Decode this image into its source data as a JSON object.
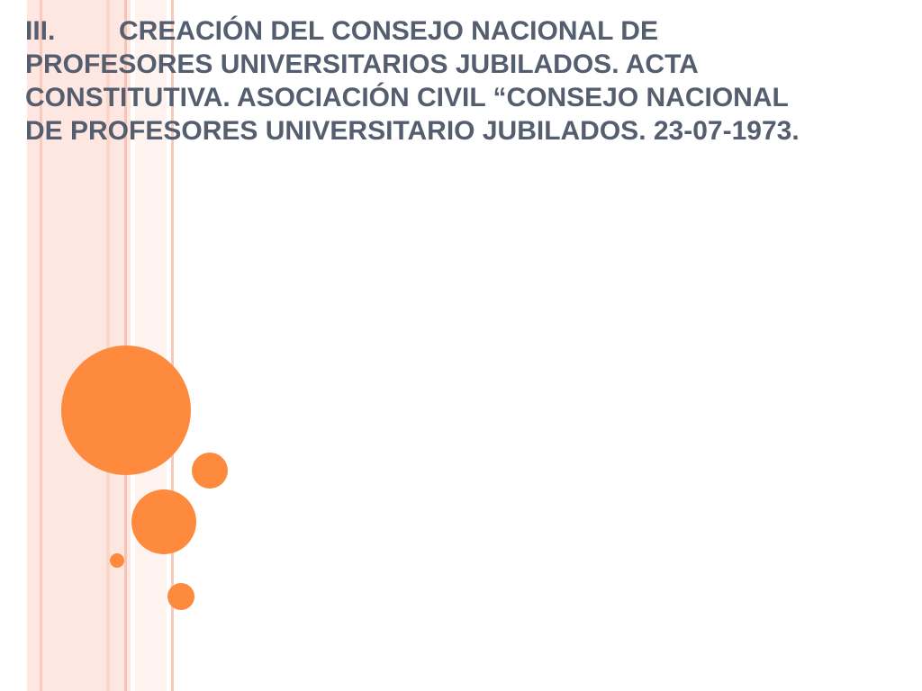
{
  "slide": {
    "heading": {
      "number": "III.",
      "lines": [
        "CREACIÓN DEL CONSEJO NACIONAL DE",
        "PROFESORES UNIVERSITARIOS JUBILADOS. ACTA",
        "CONSTITUTIVA. ASOCIACIÓN CIVIL “CONSEJO NACIONAL",
        "DE PROFESORES UNIVERSITARIO JUBILADOS. 23-07-1973."
      ]
    }
  }
}
